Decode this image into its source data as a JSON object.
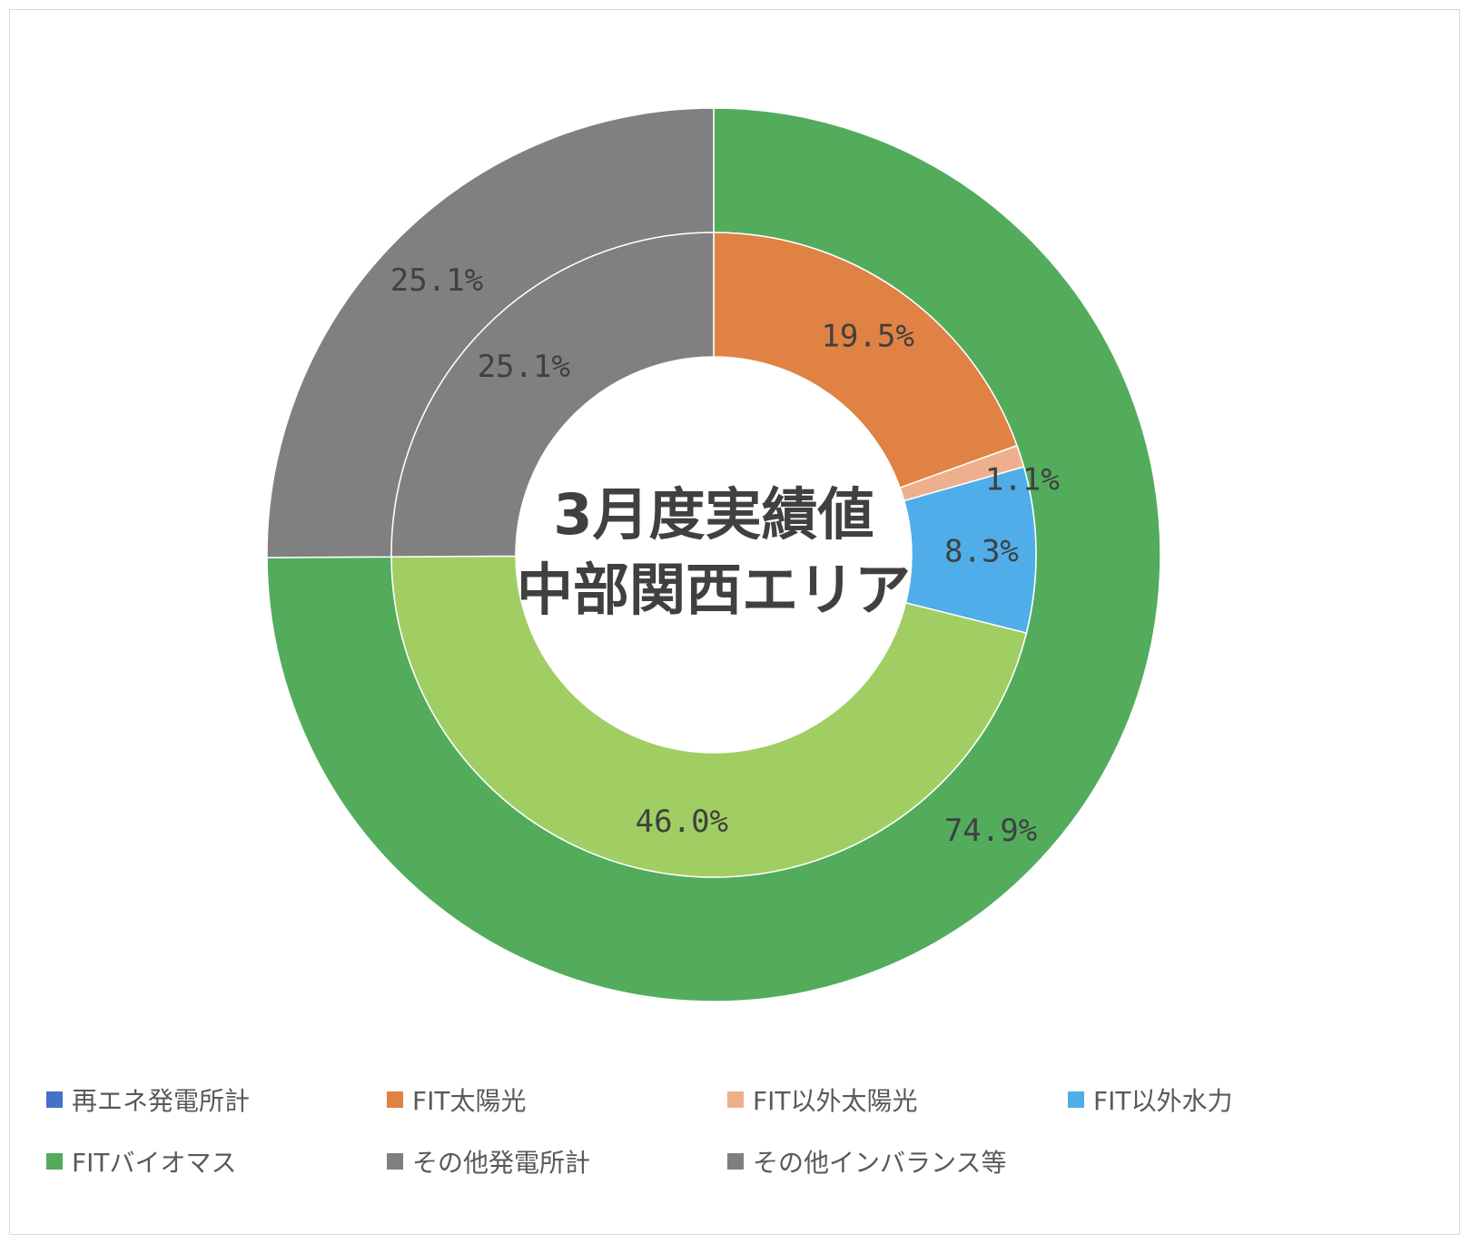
{
  "chart_data": {
    "type": "donut",
    "center_title": {
      "line1": "3月度実績値",
      "line2": "中部関西エリア"
    },
    "rings": [
      {
        "name": "",
        "slices": [
          {
            "category": "再エネ発電所計",
            "value": 74.9,
            "label": "74.9%",
            "color": "#52AC5C"
          },
          {
            "category": "その他発電所計",
            "value": 25.1,
            "label": "25.1%",
            "color": "#808080"
          }
        ]
      },
      {
        "name": "",
        "slices": [
          {
            "category": "FIT太陽光",
            "value": 19.5,
            "label": "19.5%",
            "color": "#DF8244"
          },
          {
            "category": "FIT以外太陽光",
            "value": 1.1,
            "label": "1.1%",
            "color": "#EEB08C"
          },
          {
            "category": "FIT以外水力",
            "value": 8.3,
            "label": "8.3%",
            "color": "#4FAEE9"
          },
          {
            "category": "FITバイオマス",
            "value": 46.0,
            "label": "46.0%",
            "color": "#A0CE63"
          },
          {
            "category": "その他インバランス等",
            "value": 25.1,
            "label": "25.1%",
            "color": "#808080"
          }
        ]
      }
    ],
    "legend": {
      "placement": "bottom",
      "items": [
        {
          "label": "再エネ発電所計",
          "color": "#4472C4"
        },
        {
          "label": "FIT太陽光",
          "color": "#DF8244"
        },
        {
          "label": "FIT以外太陽光",
          "color": "#EEB08C"
        },
        {
          "label": "FIT以外水力",
          "color": "#4FAEE9"
        },
        {
          "label": "FITバイオマス",
          "color": "#52AC5C"
        },
        {
          "label": "その他発電所計",
          "color": "#7F7F7F"
        },
        {
          "label": "その他インバランス等",
          "color": "#7F7F7F"
        }
      ]
    }
  }
}
